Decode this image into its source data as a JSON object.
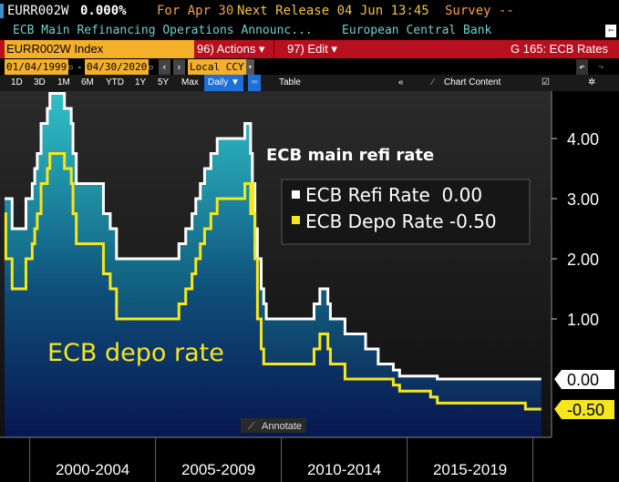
{
  "header": {
    "ticker": "EURR002W",
    "value": "0.000%",
    "for_label": "For Apr 30",
    "next_release": "Next Release 04 Jun 13:45",
    "survey": "Survey --",
    "description": "ECB Main Refinancing Operations Announc...",
    "source": "European Central Bank"
  },
  "toolbar": {
    "security": "EURR002W Index",
    "actions": "96) Actions ▾",
    "edit": "97) Edit ▾",
    "page_title": "G 165: ECB Rates",
    "start_date": "01/04/1999",
    "end_date": "04/30/2020",
    "currency": "Local CCY",
    "periods": [
      "1D",
      "3D",
      "1M",
      "6M",
      "YTD",
      "1Y",
      "5Y",
      "Max"
    ],
    "frequency": "Daily ▼",
    "table": "Table",
    "chart_content": "Chart Content"
  },
  "colors": {
    "refi": "#ffffff",
    "depo": "#f5e61e",
    "bg": "#000000",
    "red_bar": "#b8101e"
  },
  "chart_data": {
    "type": "line",
    "annotations": {
      "refi_title": "ECB main refi rate",
      "depo_title": "ECB depo rate"
    },
    "legend": [
      {
        "label": "ECB Refi Rate  0.00",
        "color": "#ffffff"
      },
      {
        "label": "ECB Depo Rate -0.50",
        "color": "#f5e61e"
      }
    ],
    "ylim": [
      -0.75,
      4.75
    ],
    "yticks": [
      "4.00",
      "3.00",
      "2.00",
      "1.00"
    ],
    "ytick_values": [
      4,
      3,
      2,
      1
    ],
    "last_values": [
      {
        "label": "0.00",
        "value": 0
      },
      {
        "label": "-0.50",
        "value": -0.5
      }
    ],
    "xlim": [
      1999.0,
      2020.33
    ],
    "xticks": [
      "2000-2004",
      "2005-2009",
      "2010-2014",
      "2015-2019"
    ],
    "xtick_starts": [
      2000,
      2005,
      2010,
      2015,
      2020
    ],
    "series": [
      {
        "name": "ECB Refi Rate",
        "points": [
          [
            1999.0,
            3.0
          ],
          [
            1999.3,
            2.5
          ],
          [
            1999.85,
            3.0
          ],
          [
            2000.1,
            3.25
          ],
          [
            2000.2,
            3.5
          ],
          [
            2000.3,
            3.75
          ],
          [
            2000.45,
            4.25
          ],
          [
            2000.7,
            4.5
          ],
          [
            2000.8,
            4.75
          ],
          [
            2001.38,
            4.5
          ],
          [
            2001.65,
            4.25
          ],
          [
            2001.72,
            3.75
          ],
          [
            2001.85,
            3.25
          ],
          [
            2002.93,
            2.75
          ],
          [
            2003.2,
            2.5
          ],
          [
            2003.45,
            2.0
          ],
          [
            2005.93,
            2.25
          ],
          [
            2006.2,
            2.5
          ],
          [
            2006.45,
            2.75
          ],
          [
            2006.6,
            3.0
          ],
          [
            2006.78,
            3.25
          ],
          [
            2006.95,
            3.5
          ],
          [
            2007.2,
            3.75
          ],
          [
            2007.45,
            4.0
          ],
          [
            2008.55,
            4.25
          ],
          [
            2008.78,
            3.75
          ],
          [
            2008.85,
            3.25
          ],
          [
            2008.95,
            2.5
          ],
          [
            2009.05,
            2.0
          ],
          [
            2009.2,
            1.5
          ],
          [
            2009.3,
            1.25
          ],
          [
            2009.4,
            1.0
          ],
          [
            2011.3,
            1.25
          ],
          [
            2011.53,
            1.5
          ],
          [
            2011.85,
            1.25
          ],
          [
            2011.95,
            1.0
          ],
          [
            2012.53,
            0.75
          ],
          [
            2013.35,
            0.5
          ],
          [
            2013.85,
            0.25
          ],
          [
            2014.45,
            0.15
          ],
          [
            2014.7,
            0.05
          ],
          [
            2016.2,
            0.0
          ],
          [
            2020.33,
            0.0
          ]
        ]
      },
      {
        "name": "ECB Depo Rate",
        "points": [
          [
            1999.0,
            2.75
          ],
          [
            1999.05,
            2.0
          ],
          [
            1999.3,
            1.5
          ],
          [
            1999.85,
            2.0
          ],
          [
            2000.1,
            2.25
          ],
          [
            2000.2,
            2.5
          ],
          [
            2000.3,
            2.75
          ],
          [
            2000.45,
            3.25
          ],
          [
            2000.7,
            3.5
          ],
          [
            2000.8,
            3.75
          ],
          [
            2001.38,
            3.5
          ],
          [
            2001.65,
            3.25
          ],
          [
            2001.72,
            2.75
          ],
          [
            2001.85,
            2.25
          ],
          [
            2002.93,
            1.75
          ],
          [
            2003.2,
            1.5
          ],
          [
            2003.45,
            1.0
          ],
          [
            2005.93,
            1.25
          ],
          [
            2006.2,
            1.5
          ],
          [
            2006.45,
            1.75
          ],
          [
            2006.6,
            2.0
          ],
          [
            2006.78,
            2.25
          ],
          [
            2006.95,
            2.5
          ],
          [
            2007.2,
            2.75
          ],
          [
            2007.45,
            3.0
          ],
          [
            2008.55,
            3.25
          ],
          [
            2008.78,
            2.75
          ],
          [
            2008.85,
            3.25
          ],
          [
            2008.88,
            2.75
          ],
          [
            2008.95,
            2.0
          ],
          [
            2009.05,
            1.0
          ],
          [
            2009.2,
            0.5
          ],
          [
            2009.3,
            0.25
          ],
          [
            2011.3,
            0.5
          ],
          [
            2011.53,
            0.75
          ],
          [
            2011.85,
            0.5
          ],
          [
            2011.95,
            0.25
          ],
          [
            2012.53,
            0.0
          ],
          [
            2014.45,
            -0.1
          ],
          [
            2014.7,
            -0.2
          ],
          [
            2015.93,
            -0.3
          ],
          [
            2016.2,
            -0.4
          ],
          [
            2019.7,
            -0.5
          ],
          [
            2020.33,
            -0.5
          ]
        ]
      }
    ]
  },
  "annotate_label": "Annotate"
}
